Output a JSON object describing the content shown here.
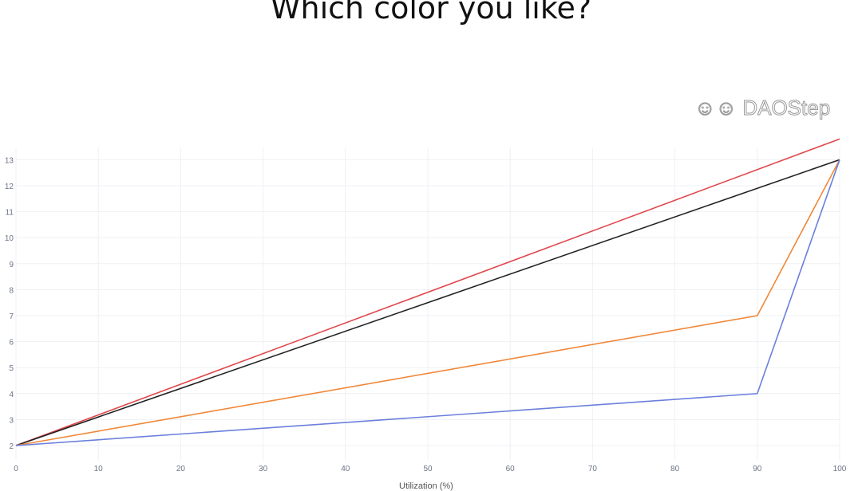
{
  "chart_data": {
    "type": "line",
    "title": "Which color you like?",
    "xlabel": "Utilization (%)",
    "ylabel": "",
    "xlim": [
      0,
      100
    ],
    "ylim": [
      1.5,
      13.5
    ],
    "xticks": [
      0,
      10,
      20,
      30,
      40,
      50,
      60,
      70,
      80,
      90,
      100
    ],
    "yticks": [
      2,
      3,
      4,
      5,
      6,
      7,
      8,
      9,
      10,
      11,
      12,
      13
    ],
    "grid": true,
    "series": [
      {
        "color": "#e0484d",
        "x": [
          0,
          100
        ],
        "y": [
          2,
          13.8
        ]
      },
      {
        "color": "#222222",
        "x": [
          0,
          100
        ],
        "y": [
          2,
          13
        ]
      },
      {
        "color": "#f0883a",
        "x": [
          0,
          90,
          100
        ],
        "y": [
          2,
          7,
          13
        ]
      },
      {
        "color": "#6b7fdc",
        "x": [
          0,
          90,
          100
        ],
        "y": [
          2,
          4,
          13
        ]
      }
    ]
  },
  "watermark": "DAOStep"
}
